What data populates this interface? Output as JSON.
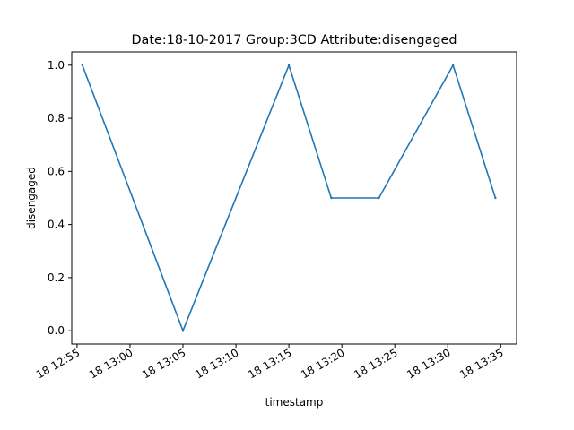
{
  "chart_data": {
    "type": "line",
    "title": "Date:18-10-2017  Group:3CD Attribute:disengaged",
    "xlabel": "timestamp",
    "ylabel": "disengaged",
    "x_type": "time",
    "xlim": [
      "2017-10-18 12:54:30",
      "2017-10-18 13:36:30"
    ],
    "ylim": [
      -0.05,
      1.05
    ],
    "xticks": [
      {
        "value": "2017-10-18 12:55:00",
        "label": "18 12:55"
      },
      {
        "value": "2017-10-18 13:00:00",
        "label": "18 13:00"
      },
      {
        "value": "2017-10-18 13:05:00",
        "label": "18 13:05"
      },
      {
        "value": "2017-10-18 13:10:00",
        "label": "18 13:10"
      },
      {
        "value": "2017-10-18 13:15:00",
        "label": "18 13:15"
      },
      {
        "value": "2017-10-18 13:20:00",
        "label": "18 13:20"
      },
      {
        "value": "2017-10-18 13:25:00",
        "label": "18 13:25"
      },
      {
        "value": "2017-10-18 13:30:00",
        "label": "18 13:30"
      },
      {
        "value": "2017-10-18 13:35:00",
        "label": "18 13:35"
      }
    ],
    "yticks": [
      {
        "value": 0.0,
        "label": "0.0"
      },
      {
        "value": 0.2,
        "label": "0.2"
      },
      {
        "value": 0.4,
        "label": "0.4"
      },
      {
        "value": 0.6,
        "label": "0.6"
      },
      {
        "value": 0.8,
        "label": "0.8"
      },
      {
        "value": 1.0,
        "label": "1.0"
      }
    ],
    "grid": false,
    "series": [
      {
        "color": "#1f77b4",
        "points": [
          {
            "x": "2017-10-18 12:55:30",
            "y": 1.0
          },
          {
            "x": "2017-10-18 13:05:00",
            "y": 0.0
          },
          {
            "x": "2017-10-18 13:15:00",
            "y": 1.0
          },
          {
            "x": "2017-10-18 13:19:00",
            "y": 0.5
          },
          {
            "x": "2017-10-18 13:23:30",
            "y": 0.5
          },
          {
            "x": "2017-10-18 13:30:30",
            "y": 1.0
          },
          {
            "x": "2017-10-18 13:34:30",
            "y": 0.5
          }
        ]
      }
    ]
  }
}
